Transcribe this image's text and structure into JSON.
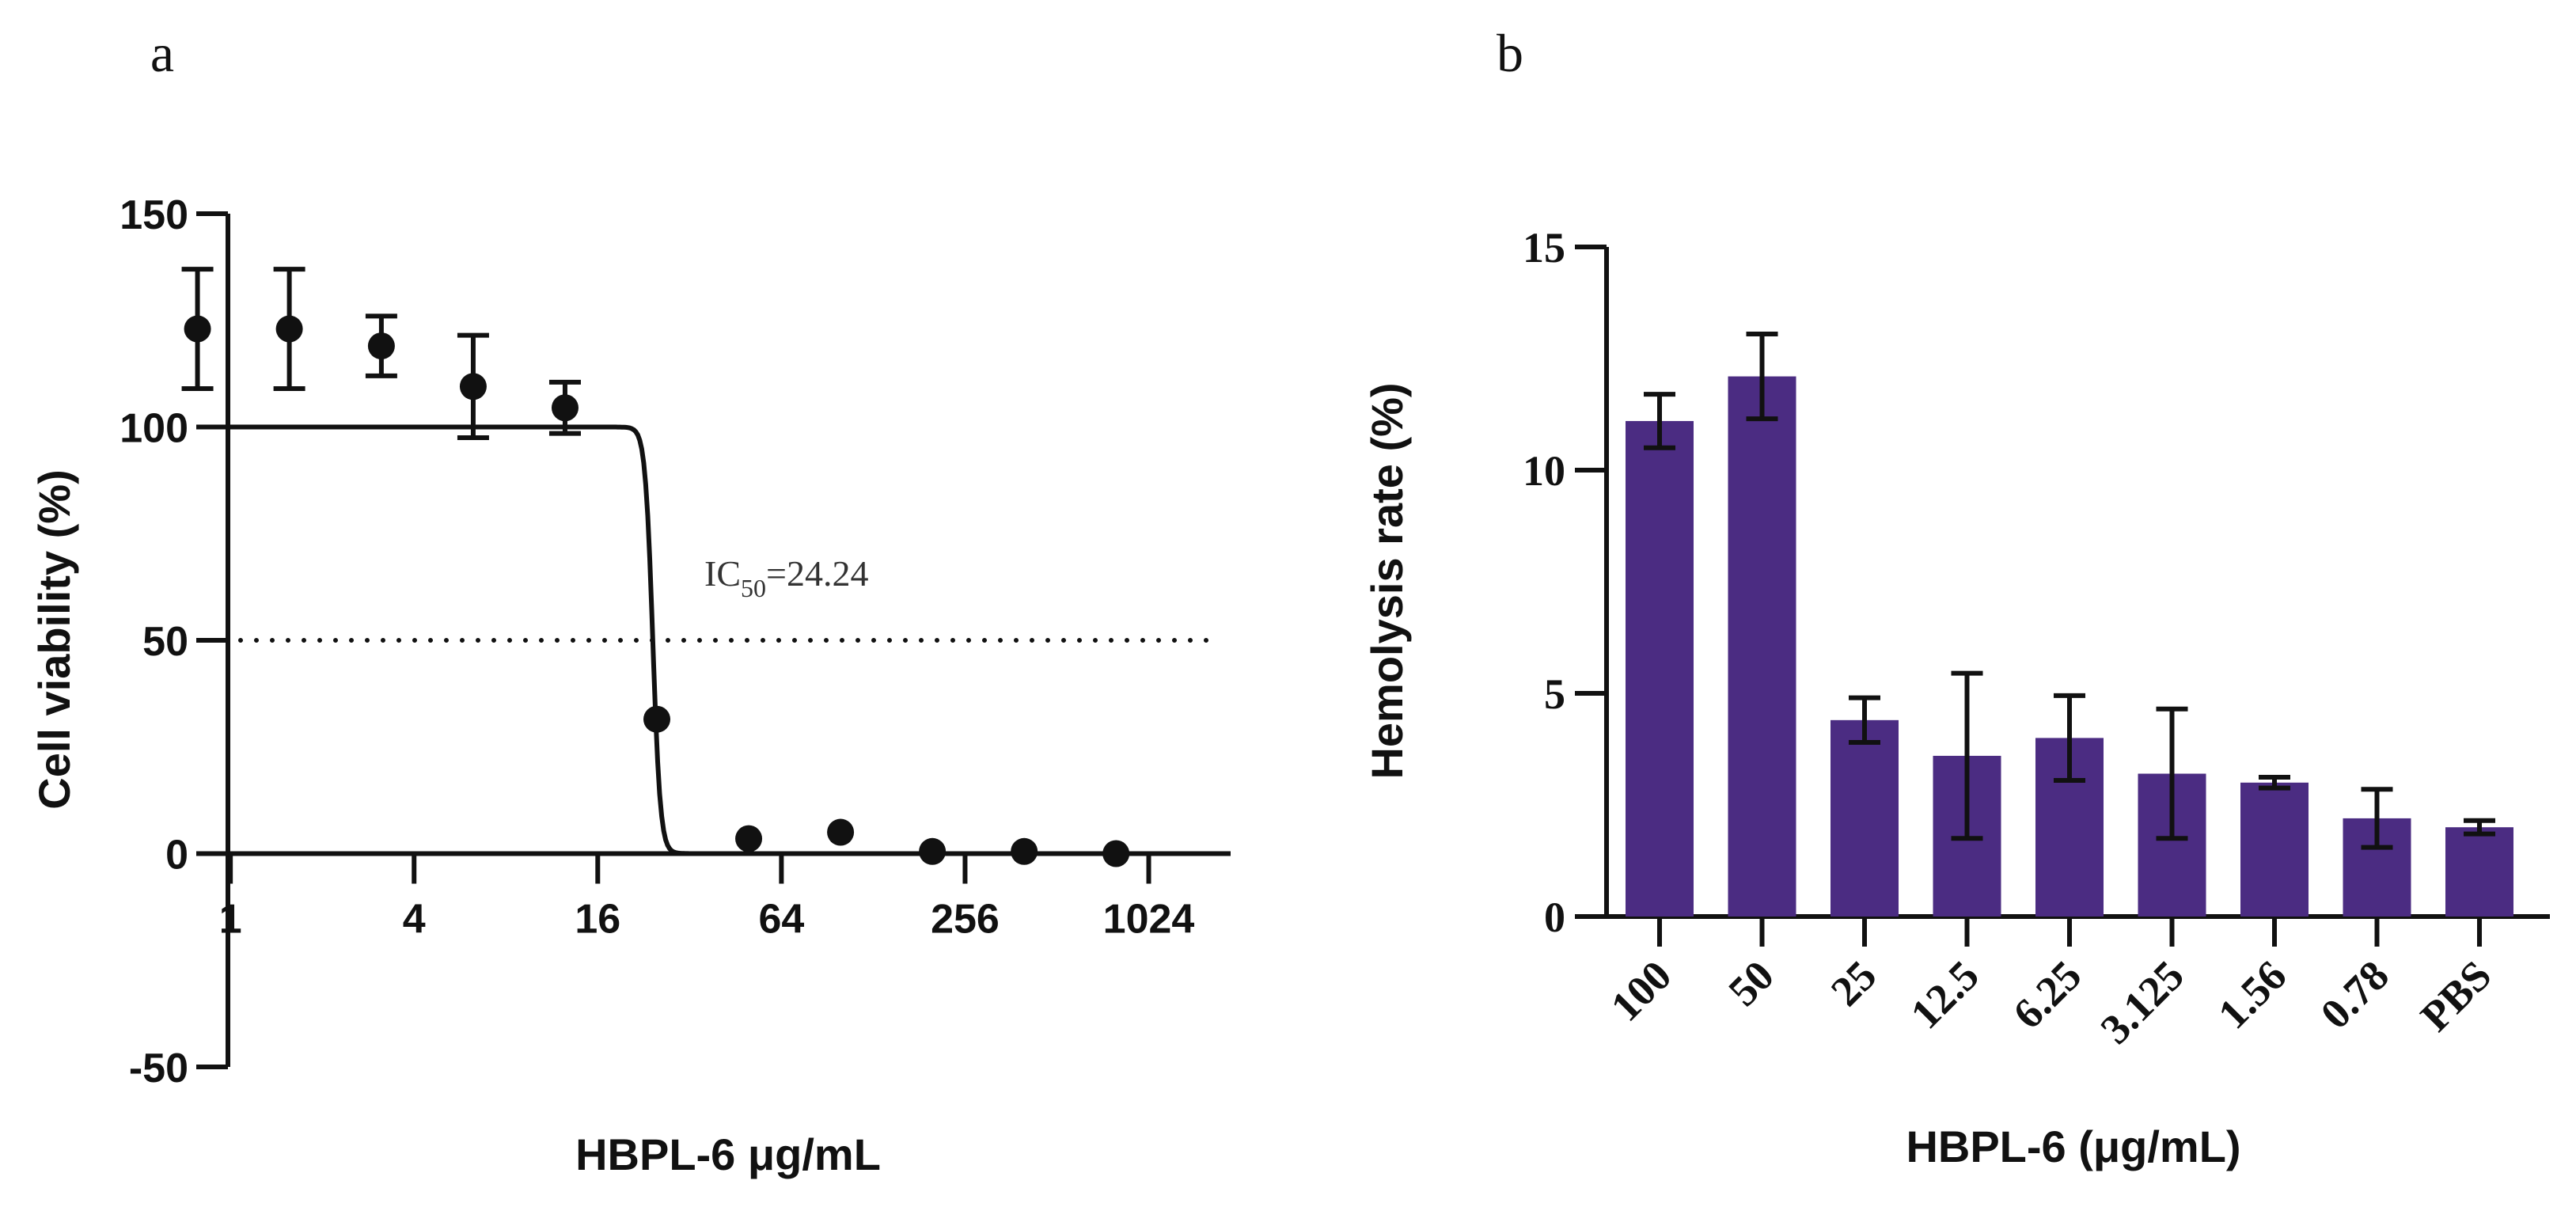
{
  "chart_data": [
    {
      "panel_label": "a",
      "type": "scatter",
      "xscale": "log2",
      "xlabel": "HBPL-6 μg/mL",
      "ylabel": "Cell viability (%)",
      "xlim": [
        0.75,
        1900
      ],
      "ylim": [
        -50,
        150
      ],
      "xticks": [
        1,
        4,
        16,
        64,
        256,
        1024
      ],
      "xtick_labels": [
        "1",
        "4",
        "16",
        "64",
        "256",
        "1024"
      ],
      "yticks": [
        -50,
        0,
        50,
        100,
        150
      ],
      "ytick_labels": [
        "-50",
        "0",
        "50",
        "100",
        "150"
      ],
      "points": [
        {
          "x": 0.78,
          "y": 123,
          "err": 14
        },
        {
          "x": 1.56,
          "y": 123,
          "err": 14
        },
        {
          "x": 3.125,
          "y": 119,
          "err": 7
        },
        {
          "x": 6.25,
          "y": 109.5,
          "err": 12
        },
        {
          "x": 12.5,
          "y": 104.5,
          "err": 6
        },
        {
          "x": 25,
          "y": 31.5,
          "err": 0
        },
        {
          "x": 50,
          "y": 3.5,
          "err": 0
        },
        {
          "x": 100,
          "y": 5,
          "err": 0
        },
        {
          "x": 200,
          "y": 0.5,
          "err": 0
        },
        {
          "x": 400,
          "y": 0.5,
          "err": 0
        },
        {
          "x": 800,
          "y": 0,
          "err": 0
        }
      ],
      "fit": {
        "top": 100,
        "bottom": 0,
        "ic50": 24.24,
        "hill": 35
      },
      "reference_line": {
        "y": 50,
        "style": "dotted"
      },
      "annotation": {
        "prefix": "IC",
        "subscript": "50",
        "suffix": "=24.24"
      }
    },
    {
      "panel_label": "b",
      "type": "bar",
      "xlabel": "HBPL-6 (μg/mL)",
      "ylabel": "Hemolysis rate (%)",
      "ylim": [
        0,
        15
      ],
      "yticks": [
        0,
        5,
        10,
        15
      ],
      "ytick_labels": [
        "0",
        "5",
        "10",
        "15"
      ],
      "categories": [
        "100",
        "50",
        "25",
        "12.5",
        "6.25",
        "3.125",
        "1.56",
        "0.78",
        "PBS"
      ],
      "values": [
        11.1,
        12.1,
        4.4,
        3.6,
        4.0,
        3.2,
        3.0,
        2.2,
        2.0
      ],
      "errors": [
        0.6,
        0.95,
        0.5,
        1.85,
        0.95,
        1.45,
        0.12,
        0.65,
        0.15
      ],
      "bar_color": "#4b2c82"
    }
  ]
}
